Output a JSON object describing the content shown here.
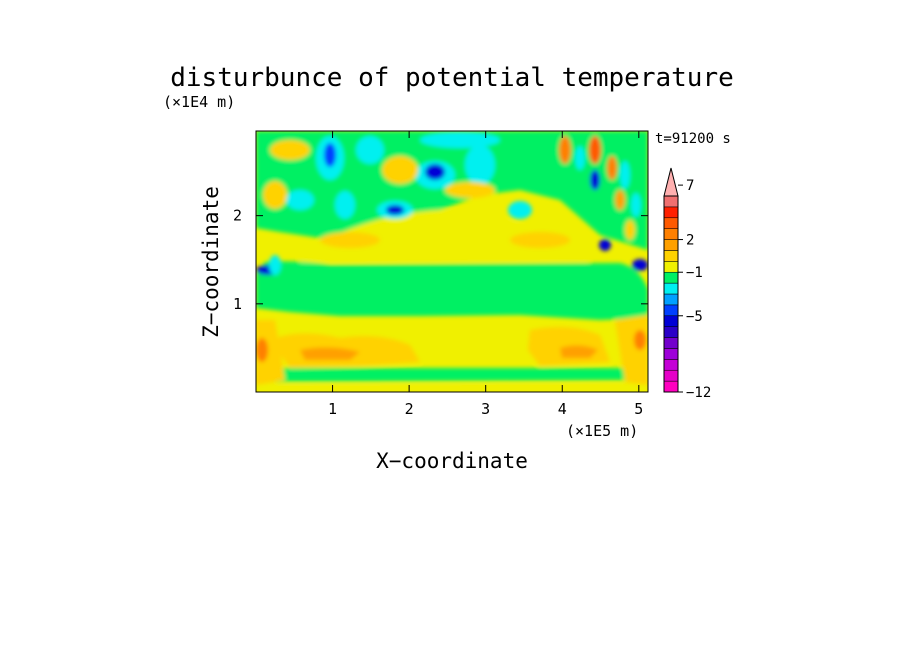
{
  "chart_data": {
    "type": "heatmap",
    "title": "disturbunce of potential temperature",
    "xlabel": "X−coordinate",
    "ylabel": "Z−coordinate",
    "x_unit": "(×1E5 m)",
    "y_unit": "(×1E4 m)",
    "time_label": "t=91200 s",
    "xlim": [
      0,
      5.12
    ],
    "ylim": [
      0,
      2.96
    ],
    "x_ticks": [
      1,
      2,
      3,
      4,
      5
    ],
    "y_ticks": [
      1,
      2
    ],
    "colorbar": {
      "levels": [
        -12,
        -11,
        -10,
        -9,
        -8,
        -7,
        -6,
        -5,
        -4,
        -3,
        -2,
        -1,
        0,
        1,
        2,
        3,
        4,
        5,
        6,
        7,
        8,
        9,
        10
      ],
      "colors": [
        "#ff00bf",
        "#e600c8",
        "#c400d6",
        "#9e00d9",
        "#7300cc",
        "#2a00c8",
        "#0000d6",
        "#0040ff",
        "#00a0ff",
        "#00f0f0",
        "#00f064",
        "#f0f000",
        "#ffd200",
        "#ffa000",
        "#ff8000",
        "#ff5a00",
        "#ff2000",
        "#f07070",
        "#ffb0b0"
      ],
      "tick_labels": [
        "−12",
        "−5",
        "−1",
        "2",
        "7"
      ],
      "extend": "max"
    },
    "grid": false,
    "legend": "right"
  }
}
